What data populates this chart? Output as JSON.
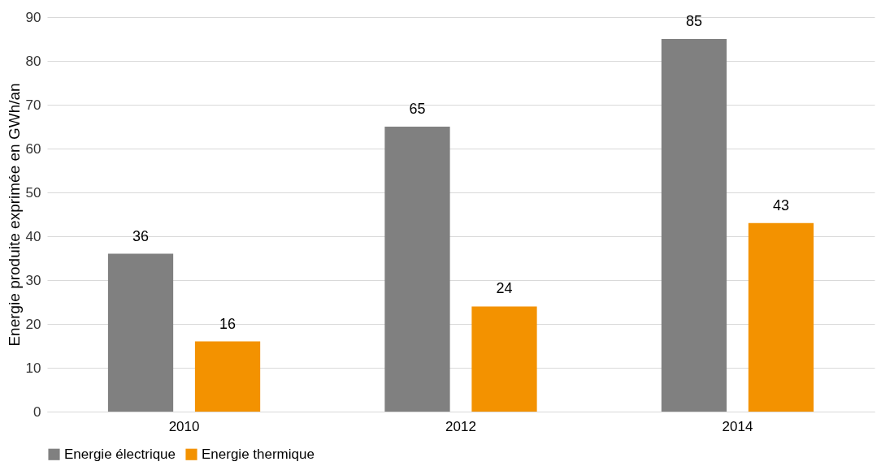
{
  "chart_data": {
    "type": "bar",
    "ylabel": "Energie produite exprimée en GWh/an",
    "categories": [
      "2010",
      "2012",
      "2014"
    ],
    "series": [
      {
        "name": "Energie électrique",
        "color": "#808080",
        "values": [
          36,
          65,
          85
        ]
      },
      {
        "name": "Energie thermique",
        "color": "#f39200",
        "values": [
          16,
          24,
          43
        ]
      }
    ],
    "ylim": [
      0,
      90
    ],
    "yticks": [
      0,
      10,
      20,
      30,
      40,
      50,
      60,
      70,
      80,
      90
    ],
    "grid": "y",
    "legend": "bottom",
    "data_labels": true
  }
}
